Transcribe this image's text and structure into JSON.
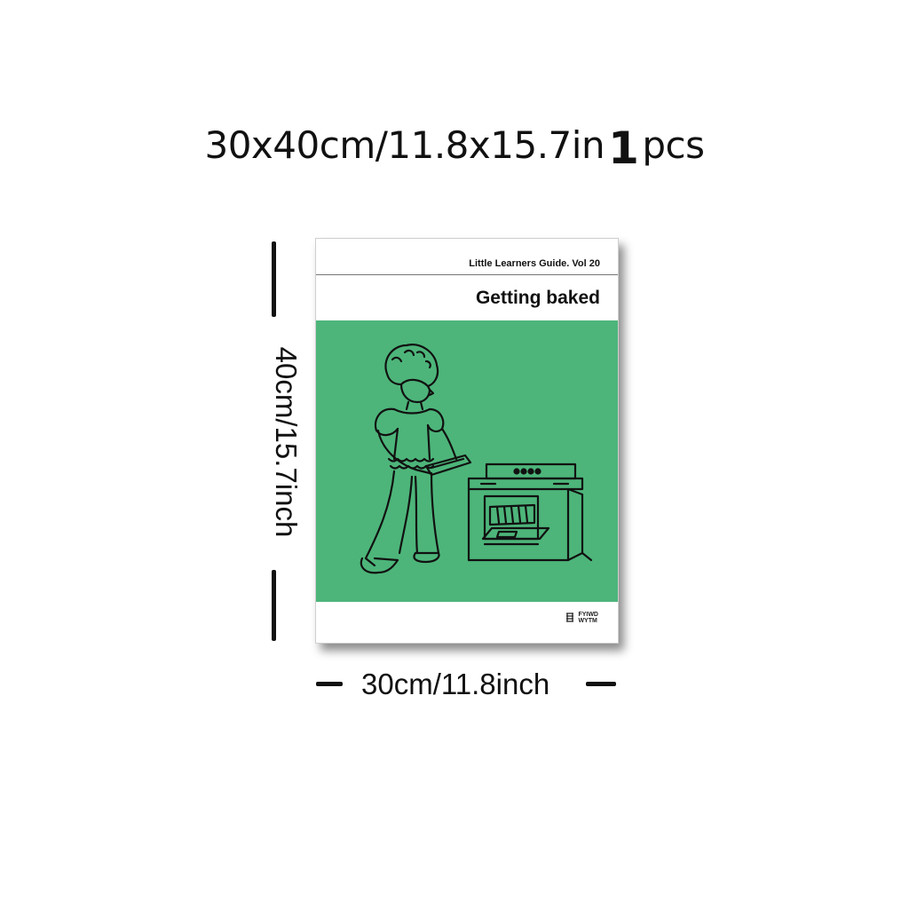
{
  "header": {
    "size_text": "30x40cm/11.8x15.7in",
    "quantity": "1",
    "unit": "pcs"
  },
  "dimensions": {
    "height_label": "40cm/15.7inch",
    "width_label": "30cm/11.8inch"
  },
  "poster": {
    "series": "Little Learners Guide. Vol 20",
    "title": "Getting baked",
    "background_color": "#4db57a",
    "illustration": "child-putting-tray-in-oven",
    "logo": {
      "icon": "scribble-logo-icon",
      "line1": "FYIWD",
      "line2": "WYTM"
    }
  }
}
